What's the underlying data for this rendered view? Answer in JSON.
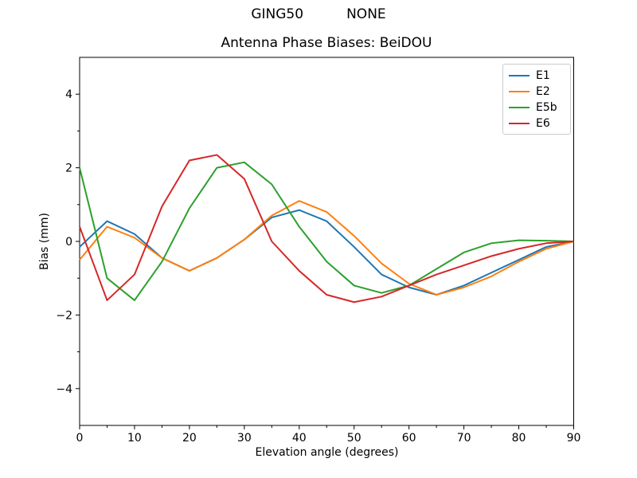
{
  "figure": {
    "suptitle": "GING50          NONE",
    "axes_title": "Antenna Phase Biases: BeiDOU"
  },
  "chart_data": {
    "type": "line",
    "suptitle": "GING50          NONE",
    "title": "Antenna Phase Biases: BeiDOU",
    "xlabel": "Elevation angle (degrees)",
    "ylabel": "Bias (mm)",
    "xlim": [
      0,
      90
    ],
    "ylim": [
      -5,
      5
    ],
    "grid": false,
    "legend_position": "upper right",
    "x": [
      0,
      5,
      10,
      15,
      20,
      25,
      30,
      35,
      40,
      45,
      50,
      55,
      60,
      65,
      70,
      75,
      80,
      85,
      90
    ],
    "series": [
      {
        "name": "E1",
        "color": "#1f77b4",
        "values": [
          -0.15,
          0.55,
          0.2,
          -0.45,
          -0.8,
          -0.45,
          0.05,
          0.65,
          0.85,
          0.55,
          -0.15,
          -0.9,
          -1.25,
          -1.45,
          -1.2,
          -0.85,
          -0.5,
          -0.15,
          0.0
        ]
      },
      {
        "name": "E2",
        "color": "#ff7f0e",
        "values": [
          -0.5,
          0.4,
          0.1,
          -0.45,
          -0.8,
          -0.45,
          0.05,
          0.7,
          1.1,
          0.8,
          0.15,
          -0.6,
          -1.15,
          -1.45,
          -1.25,
          -0.95,
          -0.55,
          -0.2,
          0.0
        ]
      },
      {
        "name": "E5b",
        "color": "#2ca02c",
        "values": [
          2.0,
          -1.0,
          -1.6,
          -0.55,
          0.9,
          2.0,
          2.15,
          1.55,
          0.4,
          -0.55,
          -1.2,
          -1.4,
          -1.2,
          -0.75,
          -0.3,
          -0.05,
          0.03,
          0.02,
          0.0
        ]
      },
      {
        "name": "E6",
        "color": "#d62728",
        "values": [
          0.4,
          -1.6,
          -0.9,
          0.95,
          2.2,
          2.35,
          1.7,
          0.0,
          -0.8,
          -1.45,
          -1.65,
          -1.5,
          -1.2,
          -0.9,
          -0.65,
          -0.4,
          -0.2,
          -0.05,
          0.0
        ]
      }
    ],
    "xticks": {
      "major": [
        0,
        10,
        20,
        30,
        40,
        50,
        60,
        70,
        80,
        90
      ],
      "labels": [
        "0",
        "10",
        "20",
        "30",
        "40",
        "50",
        "60",
        "70",
        "80",
        "90"
      ],
      "minor": [
        5,
        15,
        25,
        35,
        45,
        55,
        65,
        75,
        85
      ]
    },
    "yticks": {
      "major": [
        -4,
        -2,
        0,
        2,
        4
      ],
      "labels": [
        "−4",
        "−2",
        "0",
        "2",
        "4"
      ],
      "minor": [
        -3,
        -1,
        1,
        3
      ]
    }
  }
}
